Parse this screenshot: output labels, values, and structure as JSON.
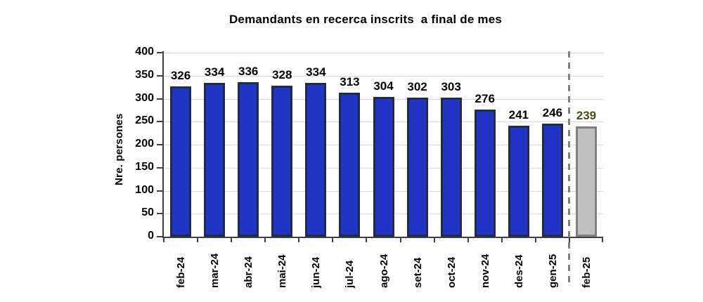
{
  "chart_data": {
    "type": "bar",
    "title": "Demandants en recerca inscrits  a final de mes",
    "ylabel": "Nre. persones",
    "xlabel": "",
    "categories": [
      "feb-24",
      "mar-24",
      "abr-24",
      "mai-24",
      "jun-24",
      "jul-24",
      "ago-24",
      "set-24",
      "oct-24",
      "nov-24",
      "des-24",
      "gen-25",
      "feb-25"
    ],
    "values": [
      326,
      334,
      336,
      328,
      334,
      313,
      304,
      302,
      303,
      276,
      241,
      246,
      239
    ],
    "ylim": [
      0,
      400
    ],
    "yticks": [
      0,
      50,
      100,
      150,
      200,
      250,
      300,
      350,
      400
    ],
    "grid": "horizontal",
    "legend": "none",
    "divider_after_index": 11,
    "highlighted_index": 12,
    "colors": {
      "bar_fill": "#2033c2",
      "bar_border": "#1c2c49",
      "highlight_fill": "#bfbfbf",
      "highlight_border": "#7f7f7f",
      "highlight_value_label": "#4a4a12",
      "value_label": "#000000",
      "gridline": "#d9d9d9",
      "axis": "#404040",
      "divider": "#808080"
    }
  }
}
